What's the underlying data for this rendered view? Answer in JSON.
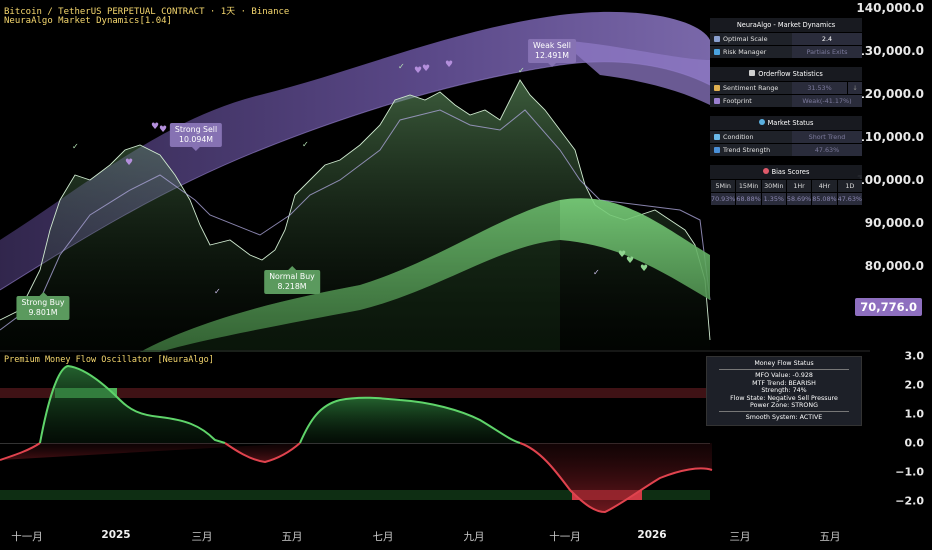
{
  "header": {
    "symbol_line": "Bitcoin / TetherUS PERPETUAL CONTRACT · 1天 · Binance",
    "indicator_line": "NeuraAlgo Market Dynamics[1.04]"
  },
  "oscillator": {
    "title": "Premium Money Flow Oscillator [NeuraAlgo]",
    "axis": [
      "3.0",
      "2.0",
      "1.0",
      "0.0",
      "−1.0",
      "−2.0"
    ]
  },
  "price_axis": [
    "140,000.0",
    "130,000.0",
    "120,000.0",
    "110,000.0",
    "100,000.0",
    "90,000.0",
    "80,000.0"
  ],
  "current_price": "70,776.0",
  "time_axis": [
    {
      "label": "十一月",
      "bold": false
    },
    {
      "label": "2025",
      "bold": true
    },
    {
      "label": "三月",
      "bold": false
    },
    {
      "label": "五月",
      "bold": false
    },
    {
      "label": "七月",
      "bold": false
    },
    {
      "label": "九月",
      "bold": false
    },
    {
      "label": "十一月",
      "bold": false
    },
    {
      "label": "2026",
      "bold": true
    },
    {
      "label": "三月",
      "bold": false
    },
    {
      "label": "五月",
      "bold": false
    }
  ],
  "signals": [
    {
      "kind": "buy",
      "title": "Strong Buy",
      "value": "9.801M"
    },
    {
      "kind": "sell",
      "title": "Strong Sell",
      "value": "10.094M"
    },
    {
      "kind": "buy",
      "title": "Normal Buy",
      "value": "8.218M"
    },
    {
      "kind": "sell",
      "title": "Weak Sell",
      "value": "12.491M"
    }
  ],
  "dynamics_panel": {
    "title": "NeuraAlgo - Market Dynamics",
    "rows": [
      {
        "key": "Optimal Scale",
        "value": "2.4"
      },
      {
        "key": "Risk Manager",
        "value": "Partials Exits"
      }
    ]
  },
  "orderflow_panel": {
    "title": "Orderflow Statistics",
    "rows": [
      {
        "key": "Sentiment Range",
        "value": "31.53%",
        "extra": "↓"
      },
      {
        "key": "Footprint",
        "value": "Weak(-41.17%)"
      }
    ]
  },
  "status_panel": {
    "title": "Market Status",
    "rows": [
      {
        "key": "Condition",
        "value": "Short Trend"
      },
      {
        "key": "Trend Strength",
        "value": "47.63%"
      }
    ]
  },
  "bias_panel": {
    "title": "Bias Scores",
    "headers": [
      "5Min",
      "15Min",
      "30Min",
      "1Hr",
      "4Hr",
      "1D"
    ],
    "values": [
      "70.93%",
      "68.88%",
      "1.35%",
      "58.69%",
      "85.08%",
      "47.63%"
    ]
  },
  "money_flow_status": {
    "title": "Money Flow Status",
    "lines": [
      "MFO Value: -0.928",
      "MTF Trend: BEARISH",
      "Strength: 74%",
      "Flow State: Negative Sell Pressure",
      "Power Zone: STRONG"
    ],
    "footer": "Smooth System: ACTIVE"
  },
  "colors": {
    "bull": "#6fcf73",
    "bear": "#e0434e",
    "purple": "#8e6fbf",
    "label_yellow": "#f5d76e"
  }
}
